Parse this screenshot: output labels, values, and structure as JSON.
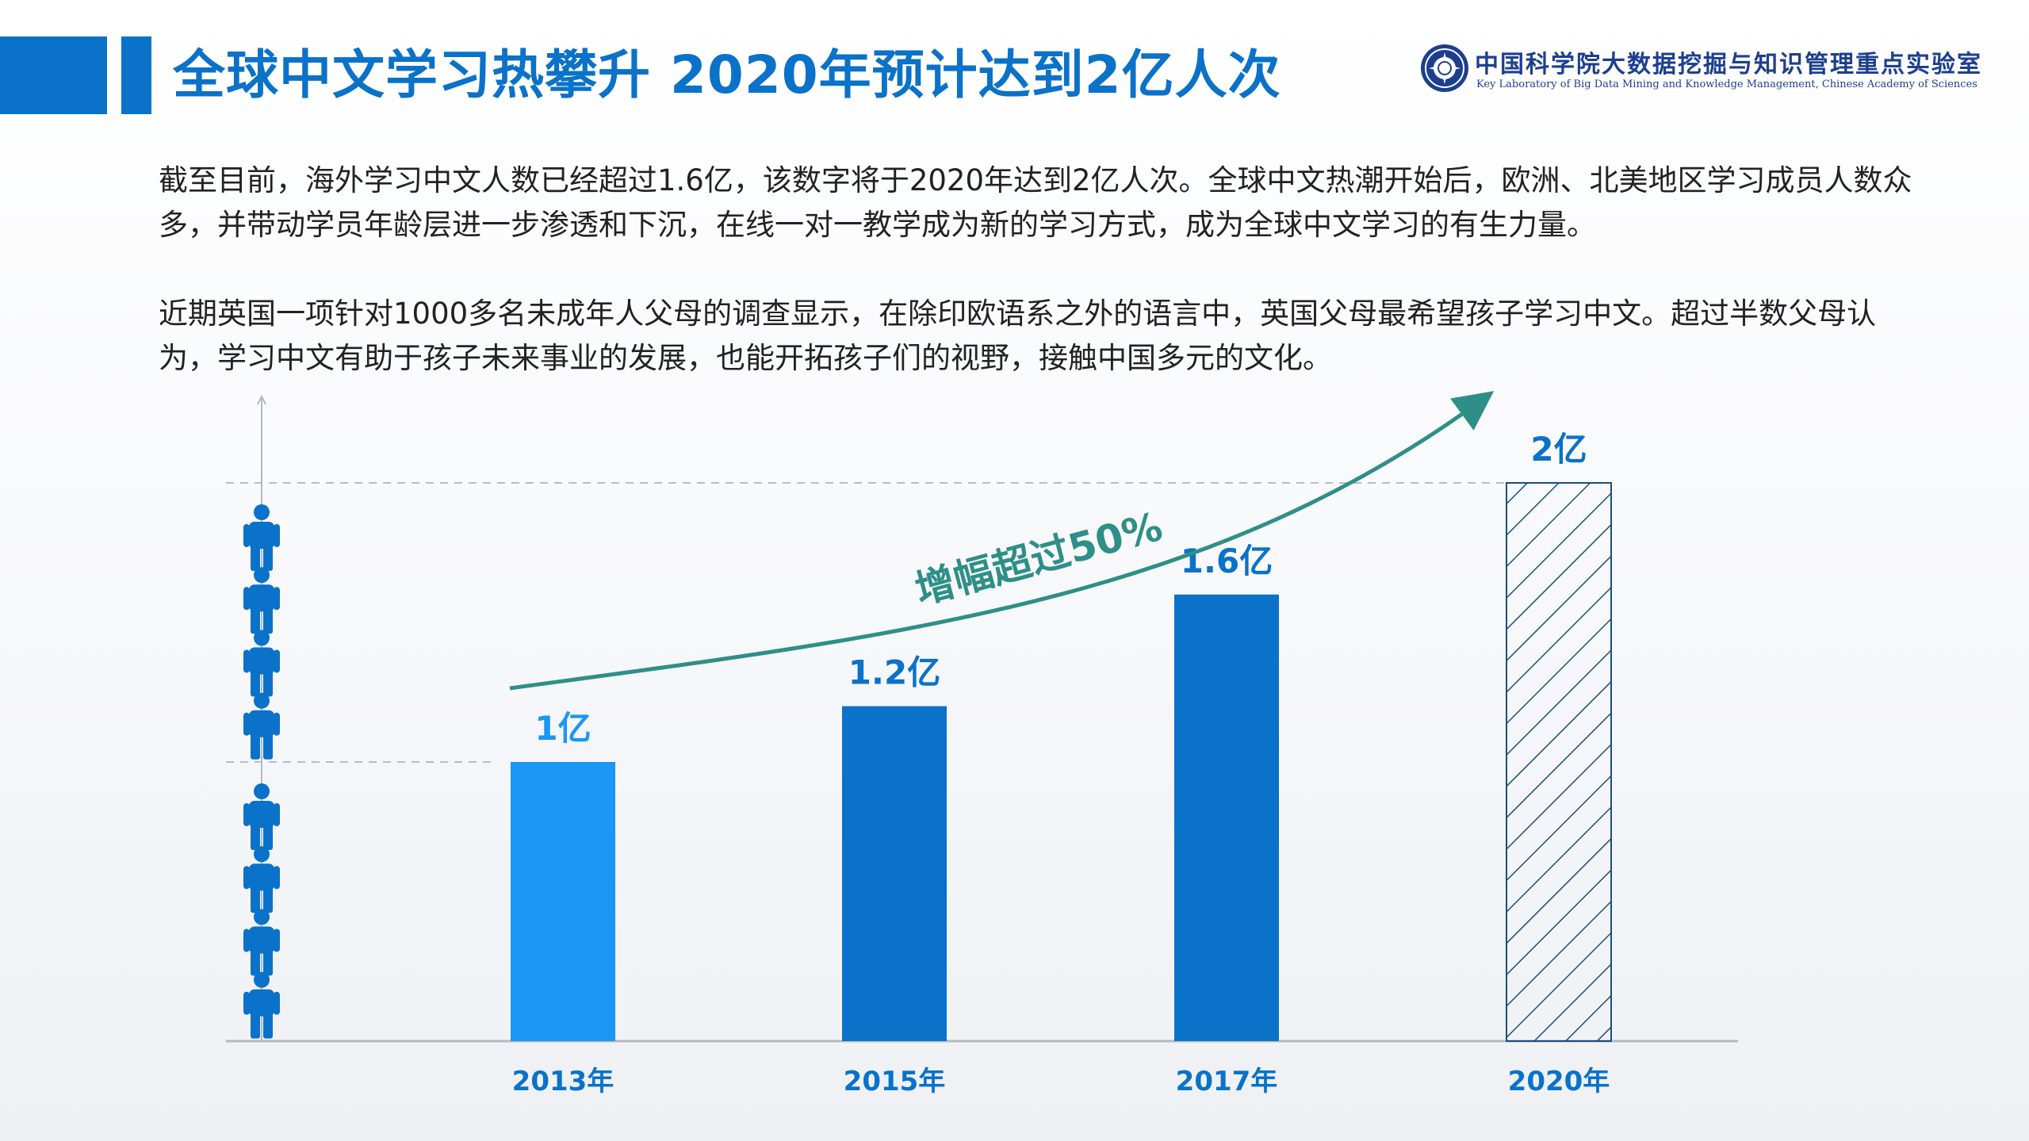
{
  "header": {
    "title": "全球中文学习热攀升 2020年预计达到2亿人次",
    "logo_cn": "中国科学院大数据挖掘与知识管理重点实验室",
    "logo_en": "Key Laboratory of Big Data Mining and Knowledge Management, Chinese Academy of Sciences"
  },
  "body": {
    "paragraph1": "截至目前，海外学习中文人数已经超过1.6亿，该数字将于2020年达到2亿人次。全球中文热潮开始后，欧洲、北美地区学习成员人数众多，并带动学员年龄层进一步渗透和下沉，在线一对一教学成为新的学习方式，成为全球中文学习的有生力量。",
    "paragraph2": "近期英国一项针对1000多名未成年人父母的调查显示，在除印欧语系之外的语言中，英国父母最希望孩子学习中文。超过半数父母认为，学习中文有助于孩子未来事业的发展，也能开拓孩子们的视野，接触中国多元的文化。"
  },
  "colors": {
    "primary": "#0a72c8",
    "bar_2013": "#1a96f5",
    "bar_mid": "#0a72c8",
    "arrow": "#2e8f88",
    "hatch": "#1b4f7a"
  },
  "chart_data": {
    "type": "bar",
    "categories": [
      "2013年",
      "2015年",
      "2017年",
      "2020年"
    ],
    "values": [
      1.0,
      1.2,
      1.6,
      2.0
    ],
    "data_labels": [
      "1亿",
      "1.2亿",
      "1.6亿",
      "2亿"
    ],
    "projected": [
      false,
      false,
      false,
      true
    ],
    "ylim": [
      0,
      2.0
    ],
    "reference_lines": [
      1.0,
      2.0
    ],
    "annotation": "增幅超过50%",
    "unit_icon": "person-icon",
    "icons_per_reference_line": 4
  }
}
